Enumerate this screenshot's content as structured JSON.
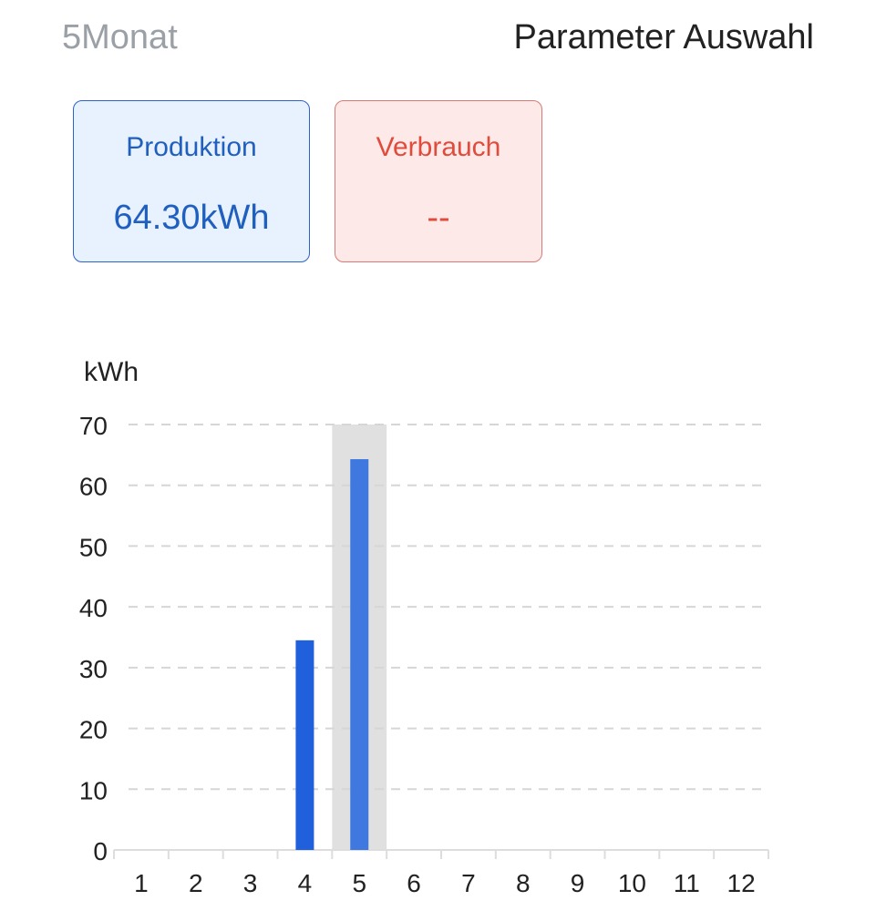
{
  "header": {
    "period_label": "5Monat",
    "parameter_label": "Parameter Auswahl"
  },
  "cards": {
    "production": {
      "label": "Produktion",
      "value": "64.30kWh"
    },
    "consumption": {
      "label": "Verbrauch",
      "value": "--"
    }
  },
  "colors": {
    "production_accent": "#1f5fbf",
    "consumption_accent": "#e04b3c",
    "bar": "#2060dd",
    "bar_selected": "#3f79e0",
    "selection_highlight": "#e0e0e0"
  },
  "chart_data": {
    "type": "bar",
    "ylabel": "kWh",
    "xlabel": "",
    "title": "",
    "ylim": [
      0,
      70
    ],
    "yticks": [
      0,
      10,
      20,
      30,
      40,
      50,
      60,
      70
    ],
    "grid": true,
    "categories": [
      "1",
      "2",
      "3",
      "4",
      "5",
      "6",
      "7",
      "8",
      "9",
      "10",
      "11",
      "12"
    ],
    "values": [
      0,
      0,
      0,
      34.5,
      64.3,
      0,
      0,
      0,
      0,
      0,
      0,
      0
    ],
    "selected_category": "5"
  }
}
